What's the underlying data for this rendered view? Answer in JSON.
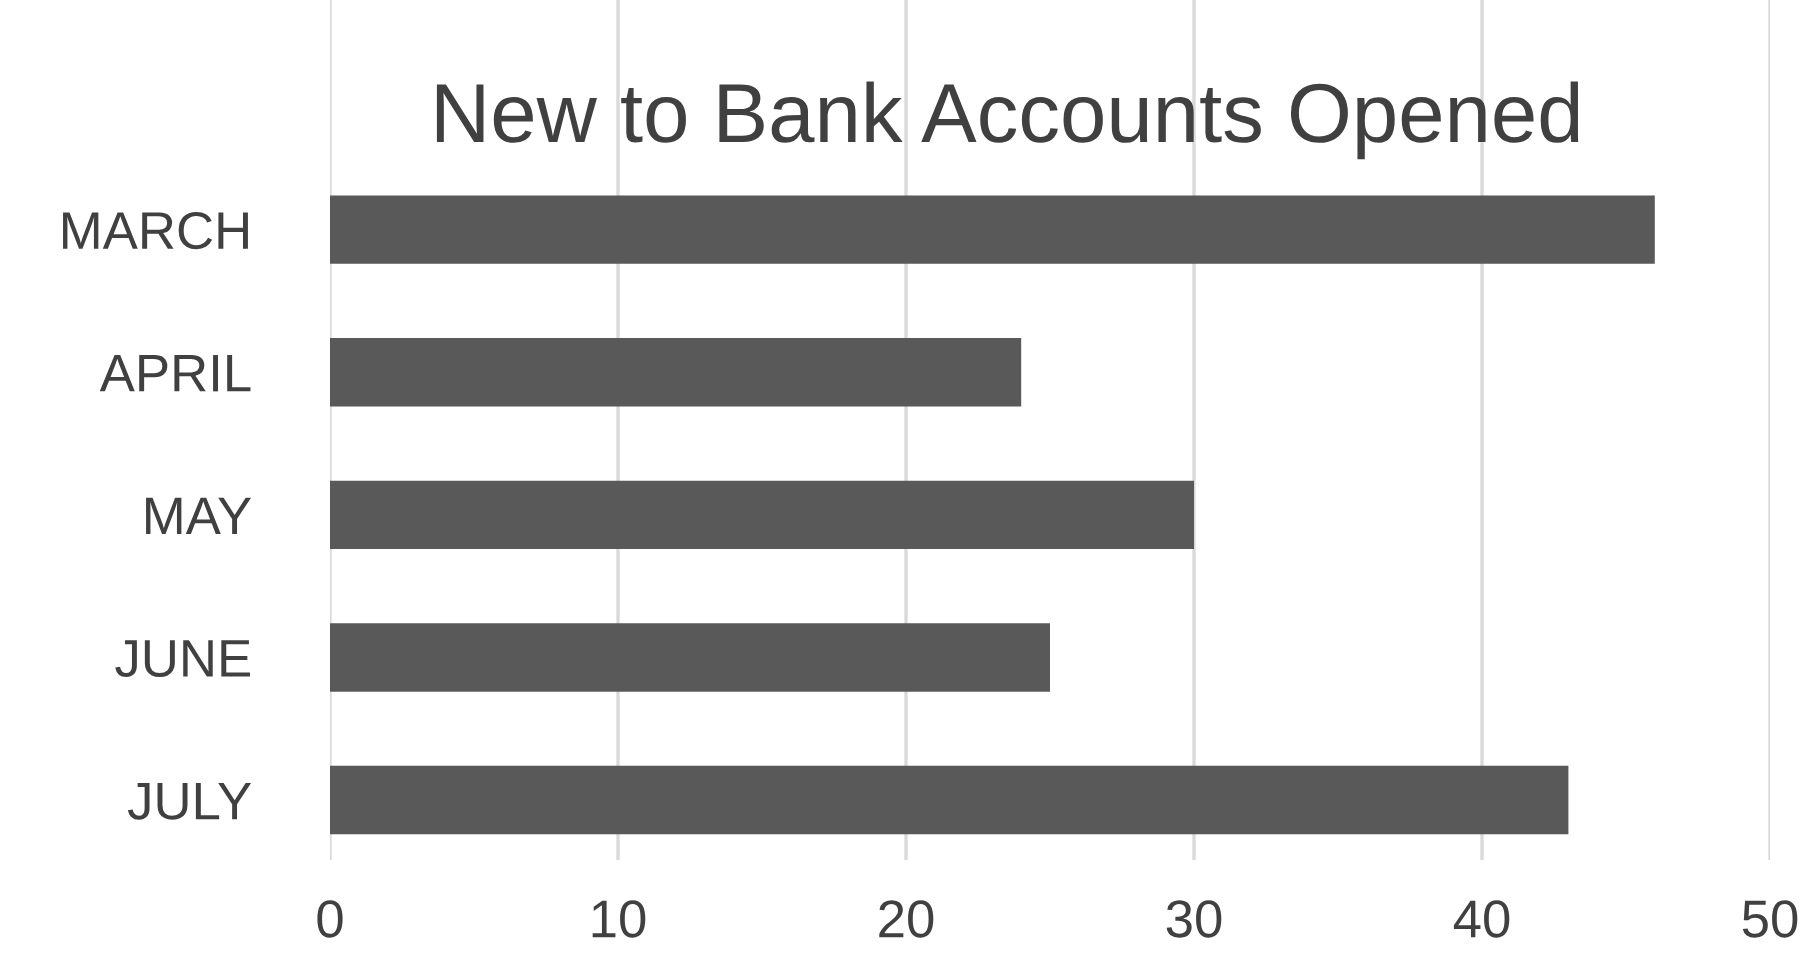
{
  "chart_data": {
    "type": "bar",
    "orientation": "horizontal",
    "title": "New to Bank Accounts Opened",
    "categories": [
      "MARCH",
      "APRIL",
      "MAY",
      "JUNE",
      "JULY"
    ],
    "values": [
      46,
      24,
      30,
      25,
      43
    ],
    "color": "#595959",
    "xlim": [
      0,
      50
    ],
    "xticks": [
      0,
      10,
      20,
      30,
      40,
      50
    ],
    "grid": "x",
    "legend": false
  }
}
